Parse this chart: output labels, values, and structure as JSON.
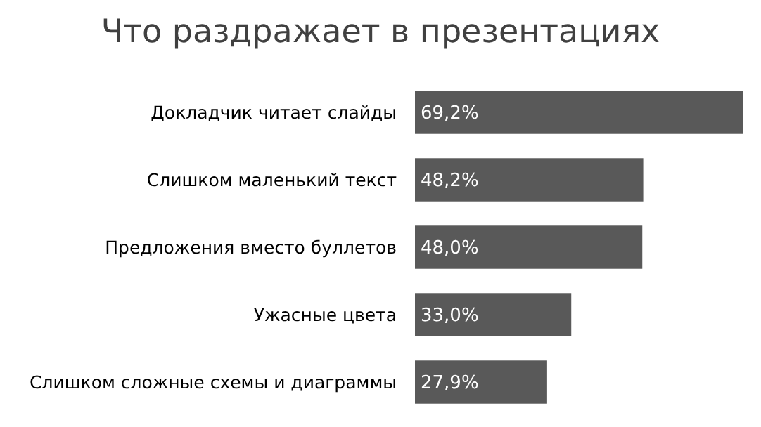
{
  "chart_data": {
    "type": "bar",
    "orientation": "horizontal",
    "title": "Что раздражает в презентациях",
    "categories": [
      "Докладчик читает слайды",
      "Слишком маленький текст",
      "Предложения вместо буллетов",
      "Ужасные цвета",
      "Слишком сложные схемы и диаграммы"
    ],
    "values": [
      69.2,
      48.2,
      48.0,
      33.0,
      27.9
    ],
    "value_labels": [
      "69,2%",
      "48,2%",
      "48,0%",
      "33,0%",
      "27,9%"
    ],
    "color": "#595959"
  }
}
